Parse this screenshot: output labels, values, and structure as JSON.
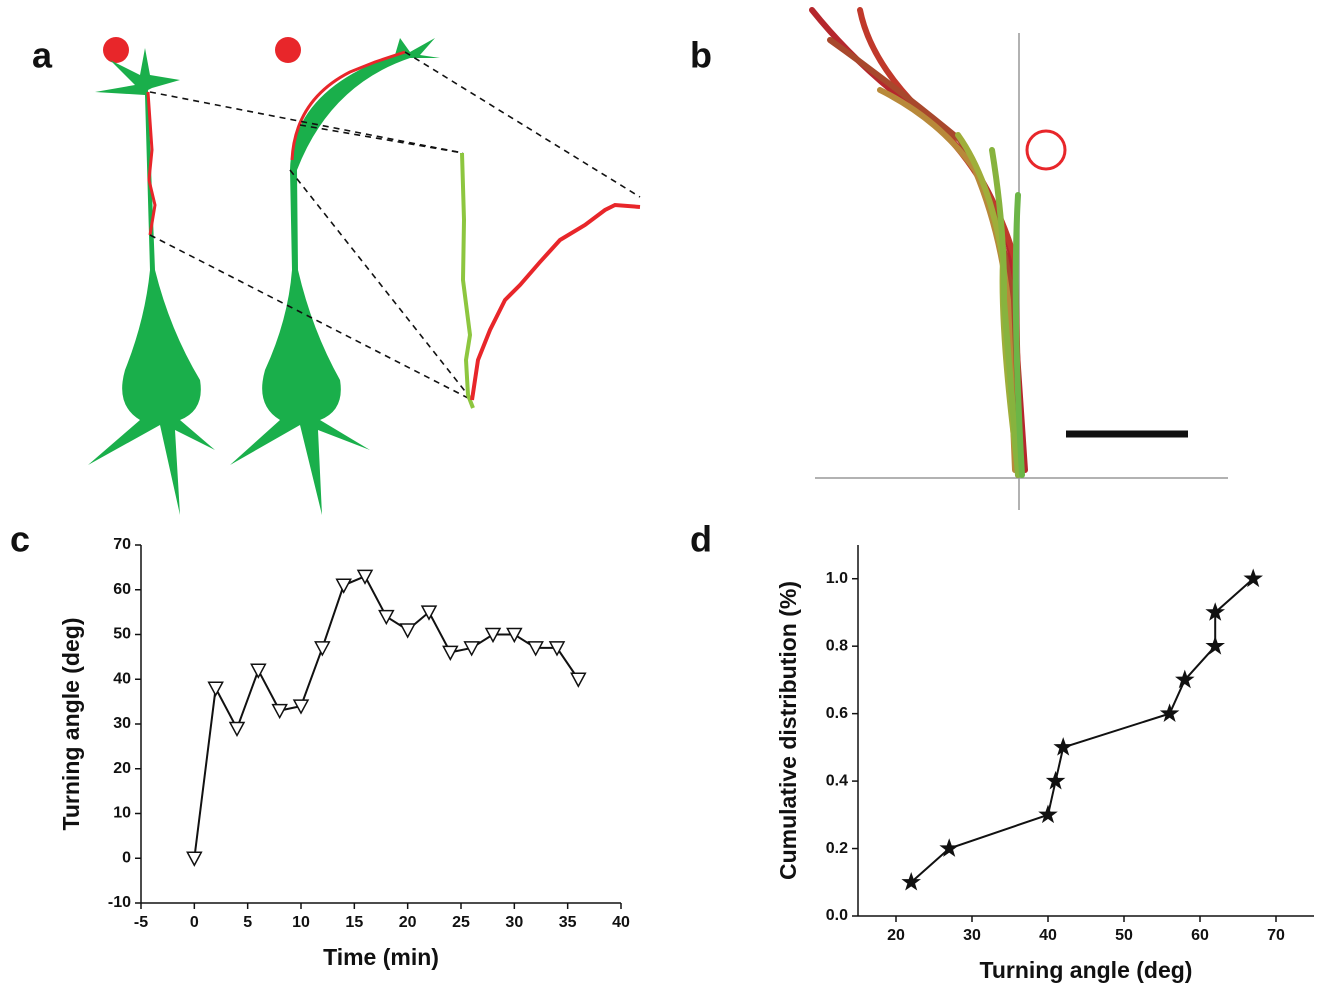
{
  "panel_labels": [
    "a",
    "b",
    "c",
    "d"
  ],
  "chart_data": [
    {
      "type": "line",
      "marker": "triangle-down",
      "color": "#111111",
      "x_label": "Time (min)",
      "y_label": "Turning angle (deg)",
      "x": [
        0,
        2,
        4,
        6,
        8,
        10,
        12,
        14,
        16,
        18,
        20,
        22,
        24,
        26,
        28,
        30,
        32,
        34,
        36
      ],
      "values": [
        0,
        38,
        29,
        42,
        33,
        34,
        47,
        61,
        63,
        54,
        51,
        55,
        46,
        47,
        50,
        50,
        47,
        47,
        40
      ],
      "xlim": [
        -5,
        40
      ],
      "xticks": [
        -5,
        0,
        5,
        10,
        15,
        20,
        25,
        30,
        35,
        40
      ],
      "ylim": [
        -10,
        70
      ],
      "yticks": [
        -10,
        0,
        10,
        20,
        30,
        40,
        50,
        60,
        70
      ]
    },
    {
      "type": "line",
      "marker": "star",
      "color": "#111111",
      "x_label": "Turning angle (deg)",
      "y_label": "Cumulative distribution (%)",
      "x": [
        22,
        27,
        40,
        41,
        42,
        56,
        58,
        62,
        62,
        67
      ],
      "values": [
        0.1,
        0.2,
        0.3,
        0.4,
        0.5,
        0.6,
        0.7,
        0.8,
        0.9,
        1.0
      ],
      "xlim": [
        15,
        75
      ],
      "xticks": [
        20,
        30,
        40,
        50,
        60,
        70
      ],
      "ylim": [
        0,
        1.1
      ],
      "yticks": [
        {
          "value": 0,
          "label": "0.0"
        },
        0.2,
        0.4,
        0.6,
        0.8,
        {
          "value": 1,
          "label": "1.0"
        }
      ]
    }
  ]
}
